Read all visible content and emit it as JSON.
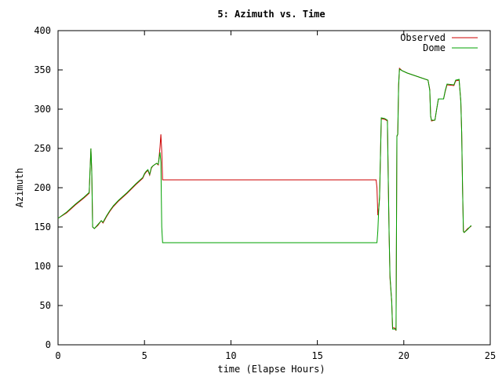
{
  "chart_data": {
    "type": "line",
    "title": "5: Azimuth vs. Time",
    "xlabel": "time (Elapse Hours)",
    "ylabel": "Azimuth",
    "xlim": [
      0,
      25
    ],
    "ylim": [
      0,
      400
    ],
    "x_ticks": [
      0,
      5,
      10,
      15,
      20,
      25
    ],
    "y_ticks": [
      0,
      50,
      100,
      150,
      200,
      250,
      300,
      350,
      400
    ],
    "grid": false,
    "legend_position": "top-right",
    "series": [
      {
        "name": "Observed",
        "color": "#cc0000",
        "points": [
          [
            0.0,
            161
          ],
          [
            0.5,
            168
          ],
          [
            1.0,
            178
          ],
          [
            1.5,
            187
          ],
          [
            1.8,
            193
          ],
          [
            1.85,
            222
          ],
          [
            1.9,
            250
          ],
          [
            1.95,
            220
          ],
          [
            2.0,
            150
          ],
          [
            2.1,
            148
          ],
          [
            2.3,
            152
          ],
          [
            2.5,
            158
          ],
          [
            2.6,
            155
          ],
          [
            2.8,
            163
          ],
          [
            3.0,
            170
          ],
          [
            3.2,
            176
          ],
          [
            3.5,
            183
          ],
          [
            4.0,
            193
          ],
          [
            4.5,
            204
          ],
          [
            4.9,
            212
          ],
          [
            5.0,
            217
          ],
          [
            5.1,
            220
          ],
          [
            5.2,
            222
          ],
          [
            5.3,
            216
          ],
          [
            5.4,
            225
          ],
          [
            5.5,
            228
          ],
          [
            5.7,
            231
          ],
          [
            5.8,
            229
          ],
          [
            5.85,
            240
          ],
          [
            5.9,
            252
          ],
          [
            5.95,
            268
          ],
          [
            6.0,
            246
          ],
          [
            6.05,
            210
          ],
          [
            18.4,
            210
          ],
          [
            18.45,
            200
          ],
          [
            18.5,
            165
          ],
          [
            18.55,
            172
          ],
          [
            18.6,
            187
          ],
          [
            18.7,
            288
          ],
          [
            18.9,
            287
          ],
          [
            19.05,
            285
          ],
          [
            19.1,
            210
          ],
          [
            19.15,
            140
          ],
          [
            19.2,
            85
          ],
          [
            19.3,
            55
          ],
          [
            19.35,
            22
          ],
          [
            19.5,
            21
          ],
          [
            19.55,
            18
          ],
          [
            19.6,
            265
          ],
          [
            19.65,
            268
          ],
          [
            19.7,
            330
          ],
          [
            19.75,
            352
          ],
          [
            19.9,
            349
          ],
          [
            20.2,
            346
          ],
          [
            20.6,
            343
          ],
          [
            21.0,
            340
          ],
          [
            21.4,
            337
          ],
          [
            21.5,
            325
          ],
          [
            21.55,
            292
          ],
          [
            21.6,
            285
          ],
          [
            21.8,
            286
          ],
          [
            21.9,
            300
          ],
          [
            22.0,
            313
          ],
          [
            22.3,
            313
          ],
          [
            22.4,
            323
          ],
          [
            22.5,
            331
          ],
          [
            22.9,
            330
          ],
          [
            23.0,
            336
          ],
          [
            23.2,
            337
          ],
          [
            23.3,
            310
          ],
          [
            23.35,
            270
          ],
          [
            23.4,
            200
          ],
          [
            23.45,
            145
          ],
          [
            23.5,
            143
          ],
          [
            23.7,
            148
          ],
          [
            23.9,
            151
          ]
        ]
      },
      {
        "name": "Dome",
        "color": "#00a000",
        "points": [
          [
            0.0,
            161
          ],
          [
            0.5,
            169
          ],
          [
            1.0,
            179
          ],
          [
            1.5,
            188
          ],
          [
            1.8,
            194
          ],
          [
            1.85,
            222
          ],
          [
            1.9,
            250
          ],
          [
            1.95,
            220
          ],
          [
            2.0,
            150
          ],
          [
            2.1,
            148
          ],
          [
            2.3,
            153
          ],
          [
            2.5,
            158
          ],
          [
            2.6,
            156
          ],
          [
            2.8,
            164
          ],
          [
            3.0,
            171
          ],
          [
            3.2,
            177
          ],
          [
            3.5,
            184
          ],
          [
            4.0,
            194
          ],
          [
            4.5,
            205
          ],
          [
            4.9,
            213
          ],
          [
            5.0,
            218
          ],
          [
            5.1,
            221
          ],
          [
            5.2,
            223
          ],
          [
            5.3,
            217
          ],
          [
            5.4,
            226
          ],
          [
            5.5,
            228
          ],
          [
            5.7,
            231
          ],
          [
            5.8,
            230
          ],
          [
            5.85,
            238
          ],
          [
            5.9,
            245
          ],
          [
            5.95,
            232
          ],
          [
            6.0,
            150
          ],
          [
            6.05,
            130
          ],
          [
            18.45,
            130
          ],
          [
            18.5,
            145
          ],
          [
            18.55,
            172
          ],
          [
            18.6,
            188
          ],
          [
            18.7,
            289
          ],
          [
            18.9,
            288
          ],
          [
            19.05,
            286
          ],
          [
            19.1,
            210
          ],
          [
            19.15,
            140
          ],
          [
            19.2,
            88
          ],
          [
            19.3,
            55
          ],
          [
            19.35,
            20
          ],
          [
            19.5,
            20
          ],
          [
            19.55,
            19
          ],
          [
            19.6,
            266
          ],
          [
            19.65,
            268
          ],
          [
            19.7,
            331
          ],
          [
            19.75,
            351
          ],
          [
            19.9,
            349
          ],
          [
            20.2,
            346
          ],
          [
            20.6,
            343
          ],
          [
            21.0,
            340
          ],
          [
            21.4,
            337
          ],
          [
            21.5,
            324
          ],
          [
            21.55,
            291
          ],
          [
            21.6,
            286
          ],
          [
            21.8,
            286
          ],
          [
            21.9,
            300
          ],
          [
            22.0,
            313
          ],
          [
            22.3,
            313
          ],
          [
            22.4,
            324
          ],
          [
            22.5,
            332
          ],
          [
            22.9,
            331
          ],
          [
            23.0,
            337
          ],
          [
            23.2,
            338
          ],
          [
            23.3,
            310
          ],
          [
            23.35,
            270
          ],
          [
            23.4,
            200
          ],
          [
            23.45,
            144
          ],
          [
            23.5,
            143
          ],
          [
            23.7,
            147
          ],
          [
            23.9,
            152
          ]
        ]
      }
    ]
  }
}
